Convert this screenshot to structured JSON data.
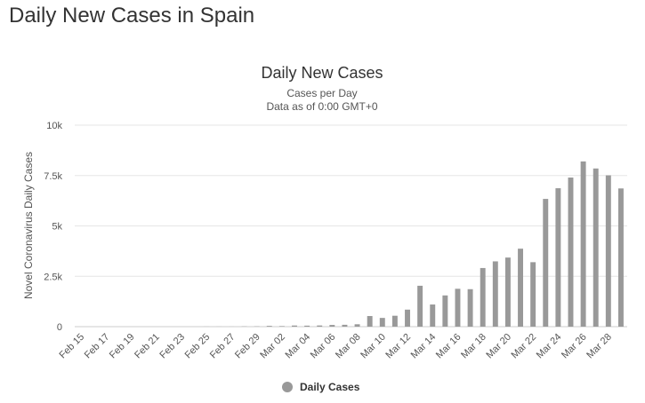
{
  "page": {
    "heading": "Daily New Cases in Spain"
  },
  "chart_data": {
    "type": "bar",
    "title": "Daily New Cases",
    "subtitle_lines": [
      "Cases per Day",
      "Data as of 0:00 GMT+0"
    ],
    "xlabel": "",
    "ylabel": "Novel Coronavirus Daily Cases",
    "ylim": [
      0,
      10000
    ],
    "yticks": [
      0,
      2500,
      5000,
      7500,
      10000
    ],
    "ytick_labels": [
      "0",
      "2.5k",
      "5k",
      "7.5k",
      "10k"
    ],
    "grid": true,
    "legend_position": "bottom-center",
    "bar_color": "#999999",
    "categories": [
      "Feb 15",
      "Feb 16",
      "Feb 17",
      "Feb 18",
      "Feb 19",
      "Feb 20",
      "Feb 21",
      "Feb 22",
      "Feb 23",
      "Feb 24",
      "Feb 25",
      "Feb 26",
      "Feb 27",
      "Feb 28",
      "Feb 29",
      "Mar 01",
      "Mar 02",
      "Mar 03",
      "Mar 04",
      "Mar 05",
      "Mar 06",
      "Mar 07",
      "Mar 08",
      "Mar 09",
      "Mar 10",
      "Mar 11",
      "Mar 12",
      "Mar 13",
      "Mar 14",
      "Mar 15",
      "Mar 16",
      "Mar 17",
      "Mar 18",
      "Mar 19",
      "Mar 20",
      "Mar 21",
      "Mar 22",
      "Mar 23",
      "Mar 24",
      "Mar 25",
      "Mar 26",
      "Mar 27",
      "Mar 28",
      "Mar 29"
    ],
    "xtick_labels": [
      "Feb 15",
      "Feb 17",
      "Feb 19",
      "Feb 21",
      "Feb 23",
      "Feb 25",
      "Feb 27",
      "Feb 29",
      "Mar 02",
      "Mar 04",
      "Mar 06",
      "Mar 08",
      "Mar 10",
      "Mar 12",
      "Mar 14",
      "Mar 16",
      "Mar 18",
      "Mar 20",
      "Mar 22",
      "Mar 24",
      "Mar 26",
      "Mar 28"
    ],
    "series": [
      {
        "name": "Daily Cases",
        "values": [
          0,
          0,
          0,
          0,
          0,
          0,
          0,
          0,
          0,
          0,
          4,
          3,
          2,
          11,
          13,
          39,
          28,
          57,
          50,
          59,
          85,
          93,
          119,
          527,
          434,
          542,
          845,
          2030,
          1100,
          1550,
          1880,
          1860,
          2910,
          3240,
          3430,
          3870,
          3200,
          6340,
          6870,
          7400,
          8200,
          7850,
          7510,
          6860
        ]
      }
    ]
  }
}
